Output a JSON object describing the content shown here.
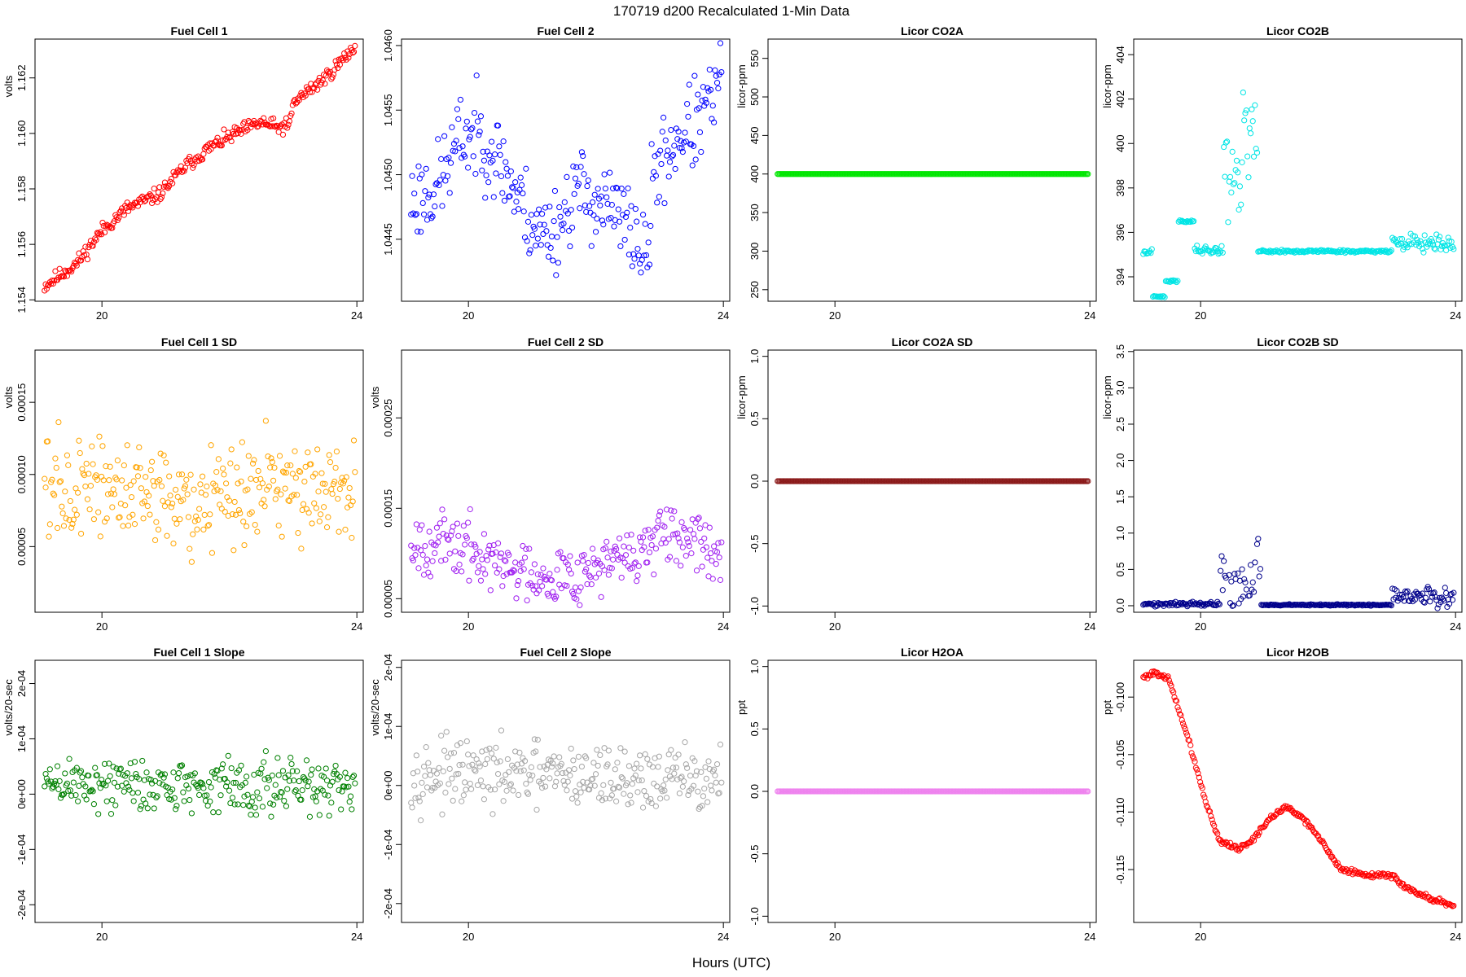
{
  "figure": {
    "title": "170719    d200    Recalculated 1-Min Data",
    "xlabel": "Hours (UTC)"
  },
  "chart_data": [
    {
      "id": "fc1",
      "type": "scatter",
      "title": "Fuel Cell 1",
      "ylabel": "volts",
      "color": "#ff0000",
      "xlim": [
        18.95,
        24.1
      ],
      "ylim": [
        1.15395,
        1.1634
      ],
      "xticks": [
        20,
        24
      ],
      "xtick_labels": [
        "20",
        "24"
      ],
      "yticks": [
        1.154,
        1.156,
        1.158,
        1.16,
        1.162
      ],
      "ytick_labels": [
        "1.154",
        "1.156",
        "1.158",
        "1.160",
        "1.162"
      ],
      "x_range": [
        19.1,
        23.97
      ],
      "n_points": 290,
      "gen": {
        "kind": "line",
        "anchors": [
          [
            19.1,
            1.1545
          ],
          [
            19.6,
            1.1553
          ],
          [
            20.0,
            1.1565
          ],
          [
            20.4,
            1.1573
          ],
          [
            20.9,
            1.1578
          ],
          [
            21.3,
            1.1588
          ],
          [
            21.7,
            1.1595
          ],
          [
            22.1,
            1.16
          ],
          [
            22.5,
            1.1604
          ],
          [
            22.75,
            1.1602
          ],
          [
            22.95,
            1.1603
          ],
          [
            23.0,
            1.1611
          ],
          [
            23.5,
            1.162
          ],
          [
            23.97,
            1.1631
          ]
        ],
        "noise": 0.00022,
        "seed": 11
      }
    },
    {
      "id": "fc2",
      "type": "scatter",
      "title": "Fuel Cell 2",
      "ylabel": "",
      "color": "#0000ff",
      "xlim": [
        18.95,
        24.1
      ],
      "ylim": [
        1.04402,
        1.04605
      ],
      "xticks": [
        20,
        24
      ],
      "xtick_labels": [
        "20",
        "24"
      ],
      "yticks": [
        1.0445,
        1.045,
        1.0455,
        1.046
      ],
      "ytick_labels": [
        "1.0445",
        "1.0450",
        "1.0455",
        "1.0460"
      ],
      "x_range": [
        19.1,
        23.97
      ],
      "n_points": 290,
      "gen": {
        "kind": "line",
        "anchors": [
          [
            19.1,
            1.0448
          ],
          [
            19.5,
            1.0449
          ],
          [
            19.9,
            1.0453
          ],
          [
            20.2,
            1.0453
          ],
          [
            20.5,
            1.0451
          ],
          [
            20.8,
            1.0448
          ],
          [
            21.1,
            1.04455
          ],
          [
            21.4,
            1.0446
          ],
          [
            21.7,
            1.0449
          ],
          [
            22.0,
            1.0448
          ],
          [
            22.3,
            1.0447
          ],
          [
            22.6,
            1.04455
          ],
          [
            22.8,
            1.0443
          ],
          [
            22.9,
            1.045
          ],
          [
            23.3,
            1.0453
          ],
          [
            23.6,
            1.0454
          ],
          [
            23.97,
            1.0457
          ]
        ],
        "noise": 0.00028,
        "seed": 23
      }
    },
    {
      "id": "co2a",
      "type": "scatter",
      "title": "Licor CO2A",
      "ylabel": "licor-ppm",
      "color": "#00e600",
      "xlim": [
        18.95,
        24.1
      ],
      "ylim": [
        235,
        575
      ],
      "xticks": [
        20,
        24
      ],
      "xtick_labels": [
        "20",
        "24"
      ],
      "yticks": [
        250,
        300,
        350,
        400,
        450,
        500,
        550
      ],
      "ytick_labels": [
        "250",
        "300",
        "350",
        "400",
        "450",
        "500",
        "550"
      ],
      "x_range": [
        19.1,
        23.97
      ],
      "n_points": 290,
      "gen": {
        "kind": "line",
        "anchors": [
          [
            19.1,
            400
          ],
          [
            23.97,
            400
          ]
        ],
        "noise": 0,
        "seed": 3
      }
    },
    {
      "id": "co2b",
      "type": "scatter",
      "title": "Licor CO2B",
      "ylabel": "licor-ppm",
      "color": "#00e5e5",
      "xlim": [
        18.95,
        24.1
      ],
      "ylim": [
        392.9,
        404.7
      ],
      "xticks": [
        20,
        24
      ],
      "xtick_labels": [
        "20",
        "24"
      ],
      "yticks": [
        394,
        396,
        398,
        400,
        402,
        404
      ],
      "ytick_labels": [
        "394",
        "396",
        "398",
        "400",
        "402",
        "404"
      ],
      "x_range": [
        19.1,
        23.97
      ],
      "n_points": 290,
      "gen": {
        "kind": "piecewise",
        "segments": [
          [
            19.1,
            19.25,
            395.1,
            0.12
          ],
          [
            19.25,
            19.45,
            393.1,
            0.05
          ],
          [
            19.45,
            19.65,
            393.8,
            0.05
          ],
          [
            19.65,
            19.9,
            396.5,
            0.05
          ],
          [
            19.9,
            20.35,
            395.2,
            0.2
          ],
          [
            20.35,
            20.65,
            399.0,
            2.2
          ],
          [
            20.65,
            20.9,
            400.5,
            2.8
          ],
          [
            20.9,
            23.0,
            395.15,
            0.06
          ],
          [
            23.0,
            23.97,
            395.5,
            0.35
          ]
        ],
        "seed": 41
      }
    },
    {
      "id": "fc1sd",
      "type": "scatter",
      "title": "Fuel Cell 1 SD",
      "ylabel": "volts",
      "color": "#ffa500",
      "xlim": [
        18.95,
        24.1
      ],
      "ylim": [
        4.5e-06,
        0.0001862
      ],
      "xticks": [
        20,
        24
      ],
      "xtick_labels": [
        "20",
        "24"
      ],
      "yticks": [
        5e-05,
        0.0001,
        0.00015
      ],
      "ytick_labels": [
        "0.00005",
        "0.00010",
        "0.00015"
      ],
      "x_range": [
        19.1,
        23.97
      ],
      "n_points": 290,
      "gen": {
        "kind": "line",
        "anchors": [
          [
            19.1,
            9.5e-05
          ],
          [
            20.5,
            8.5e-05
          ],
          [
            21.5,
            8e-05
          ],
          [
            22.5,
            9.5e-05
          ],
          [
            23.97,
            9e-05
          ]
        ],
        "noise": 3e-05,
        "seed": 57
      }
    },
    {
      "id": "fc2sd",
      "type": "scatter",
      "title": "Fuel Cell 2 SD",
      "ylabel": "volts",
      "color": "#a020f0",
      "xlim": [
        18.95,
        24.1
      ],
      "ylim": [
        3.5e-05,
        0.000325
      ],
      "xticks": [
        20,
        24
      ],
      "xtick_labels": [
        "20",
        "24"
      ],
      "yticks": [
        5e-05,
        0.00015,
        0.00025
      ],
      "ytick_labels": [
        "0.00005",
        "0.00015",
        "0.00025"
      ],
      "x_range": [
        19.1,
        23.97
      ],
      "n_points": 290,
      "gen": {
        "kind": "line",
        "anchors": [
          [
            19.1,
            0.000115
          ],
          [
            20.0,
            0.000105
          ],
          [
            20.5,
            8.5e-05
          ],
          [
            21.5,
            7.5e-05
          ],
          [
            22.5,
            9.5e-05
          ],
          [
            23.0,
            0.000115
          ],
          [
            23.97,
            0.000105
          ]
        ],
        "noise": 2.8e-05,
        "seed": 67
      }
    },
    {
      "id": "co2asd",
      "type": "scatter",
      "title": "Licor CO2A SD",
      "ylabel": "licor-ppm",
      "color": "#8b1a1a",
      "xlim": [
        18.95,
        24.1
      ],
      "ylim": [
        -1.05,
        1.05
      ],
      "xticks": [
        20,
        24
      ],
      "xtick_labels": [
        "20",
        "24"
      ],
      "yticks": [
        -1,
        -0.5,
        0,
        0.5,
        1
      ],
      "ytick_labels": [
        "-1.0",
        "-0.5",
        "0.0",
        "0.5",
        "1.0"
      ],
      "x_range": [
        19.1,
        23.97
      ],
      "n_points": 290,
      "gen": {
        "kind": "line",
        "anchors": [
          [
            19.1,
            0
          ],
          [
            23.97,
            0
          ]
        ],
        "noise": 0,
        "seed": 5
      }
    },
    {
      "id": "co2bsd",
      "type": "scatter",
      "title": "Licor CO2B SD",
      "ylabel": "licor-ppm",
      "color": "#00008b",
      "xlim": [
        18.95,
        24.1
      ],
      "ylim": [
        -0.09,
        3.52
      ],
      "xticks": [
        20,
        24
      ],
      "xtick_labels": [
        "20",
        "24"
      ],
      "yticks": [
        0,
        0.5,
        1,
        1.5,
        2,
        2.5,
        3,
        3.5
      ],
      "ytick_labels": [
        "0.0",
        "0.5",
        "1.0",
        "1.5",
        "2.0",
        "2.5",
        "3.0",
        "3.5"
      ],
      "x_range": [
        19.1,
        23.97
      ],
      "n_points": 290,
      "gen": {
        "kind": "piecewise",
        "segments": [
          [
            19.1,
            20.3,
            0.02,
            0.03
          ],
          [
            20.3,
            20.95,
            0.3,
            0.55
          ],
          [
            20.95,
            23.0,
            0.01,
            0.01
          ],
          [
            23.0,
            23.97,
            0.12,
            0.12
          ]
        ],
        "seed": 77
      }
    },
    {
      "id": "fc1slope",
      "type": "scatter",
      "title": "Fuel Cell 1 Slope",
      "ylabel": "volts/20-sec",
      "color": "#008000",
      "xlim": [
        18.95,
        24.1
      ],
      "ylim": [
        -0.000232,
        0.000242
      ],
      "xticks": [
        20,
        24
      ],
      "xtick_labels": [
        "20",
        "24"
      ],
      "yticks": [
        -0.0002,
        -0.0001,
        0,
        0.0001,
        0.0002
      ],
      "ytick_labels": [
        "-2e-04",
        "-1e-04",
        "0e+00",
        "1e-04",
        "2e-04"
      ],
      "x_range": [
        19.1,
        23.97
      ],
      "n_points": 290,
      "gen": {
        "kind": "line",
        "anchors": [
          [
            19.1,
            2e-05
          ],
          [
            23.97,
            1e-05
          ]
        ],
        "noise": 4.2e-05,
        "seed": 89
      }
    },
    {
      "id": "fc2slope",
      "type": "scatter",
      "title": "Fuel Cell 2 Slope",
      "ylabel": "volts/20-sec",
      "color": "#a6a6a6",
      "xlim": [
        18.95,
        24.1
      ],
      "ylim": [
        -0.000232,
        0.000212
      ],
      "xticks": [
        20,
        24
      ],
      "xtick_labels": [
        "20",
        "24"
      ],
      "yticks": [
        -0.0002,
        -0.0001,
        0,
        0.0001,
        0.0002
      ],
      "ytick_labels": [
        "-2e-04",
        "-1e-04",
        "0e+00",
        "1e-04",
        "2e-04"
      ],
      "x_range": [
        19.1,
        23.97
      ],
      "n_points": 290,
      "gen": {
        "kind": "line",
        "anchors": [
          [
            19.1,
            2e-05
          ],
          [
            23.97,
            1e-05
          ]
        ],
        "noise": 4.5e-05,
        "seed": 97
      }
    },
    {
      "id": "h2oa",
      "type": "scatter",
      "title": "Licor H2OA",
      "ylabel": "ppt",
      "color": "#ee82ee",
      "xlim": [
        18.95,
        24.1
      ],
      "ylim": [
        -1.05,
        1.05
      ],
      "xticks": [
        20,
        24
      ],
      "xtick_labels": [
        "20",
        "24"
      ],
      "yticks": [
        -1,
        -0.5,
        0,
        0.5,
        1
      ],
      "ytick_labels": [
        "-1.0",
        "-0.5",
        "0.0",
        "0.5",
        "1.0"
      ],
      "x_range": [
        19.1,
        23.97
      ],
      "n_points": 290,
      "gen": {
        "kind": "line",
        "anchors": [
          [
            19.1,
            0
          ],
          [
            23.97,
            0
          ]
        ],
        "noise": 0,
        "seed": 7
      }
    },
    {
      "id": "h2ob",
      "type": "scatter",
      "title": "Licor H2OB",
      "ylabel": "ppt",
      "color": "#ff0000",
      "xlim": [
        18.95,
        24.1
      ],
      "ylim": [
        -0.1196,
        -0.0968
      ],
      "xticks": [
        20,
        24
      ],
      "xtick_labels": [
        "20",
        "24"
      ],
      "yticks": [
        -0.115,
        -0.11,
        -0.105,
        -0.1
      ],
      "ytick_labels": [
        "-0.115",
        "-0.110",
        "-0.105",
        "-0.100"
      ],
      "x_range": [
        19.1,
        23.97
      ],
      "n_points": 290,
      "gen": {
        "kind": "line",
        "anchors": [
          [
            19.1,
            -0.0983
          ],
          [
            19.3,
            -0.0978
          ],
          [
            19.5,
            -0.0985
          ],
          [
            19.8,
            -0.1035
          ],
          [
            20.1,
            -0.1095
          ],
          [
            20.3,
            -0.1125
          ],
          [
            20.6,
            -0.1132
          ],
          [
            20.8,
            -0.1125
          ],
          [
            21.1,
            -0.1105
          ],
          [
            21.35,
            -0.1095
          ],
          [
            21.6,
            -0.1105
          ],
          [
            21.9,
            -0.1125
          ],
          [
            22.2,
            -0.115
          ],
          [
            22.6,
            -0.1155
          ],
          [
            23.0,
            -0.1155
          ],
          [
            23.2,
            -0.1165
          ],
          [
            23.6,
            -0.1175
          ],
          [
            23.97,
            -0.1182
          ]
        ],
        "noise": 0.00018,
        "seed": 101
      }
    }
  ]
}
